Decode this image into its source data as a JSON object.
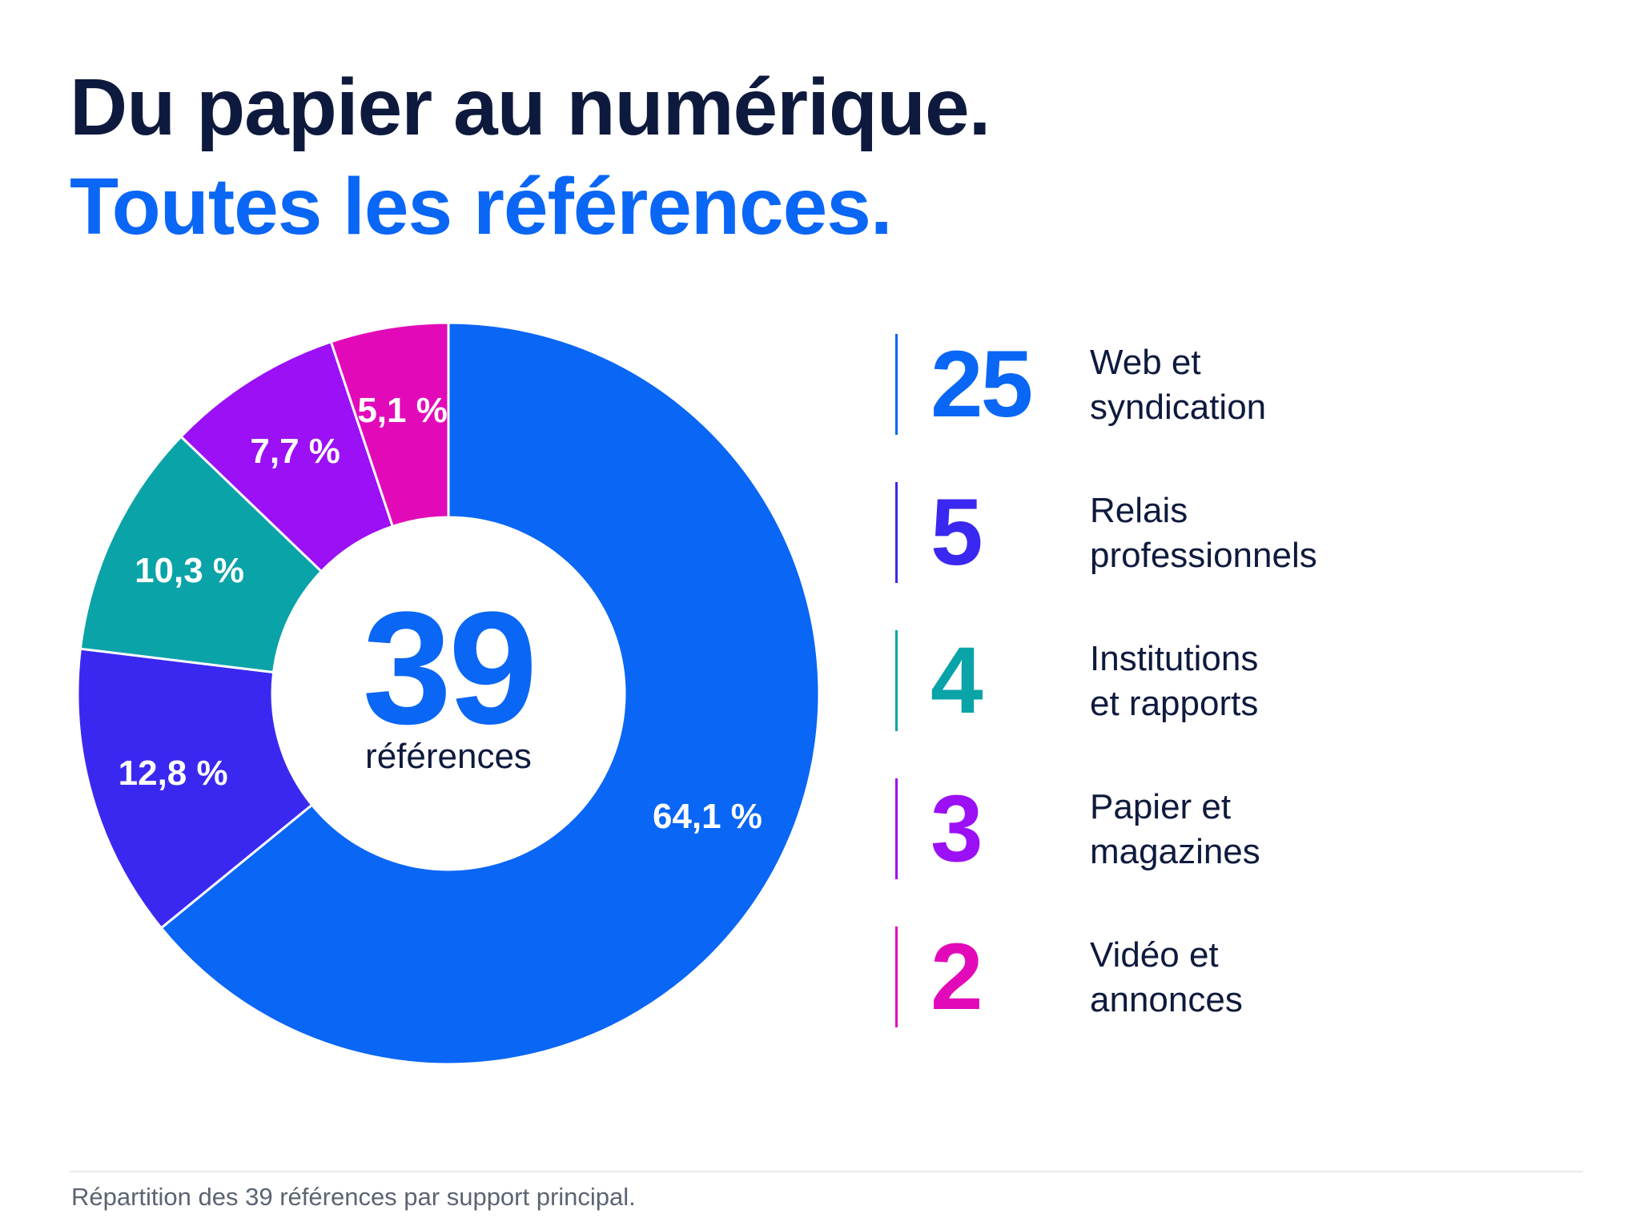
{
  "title": {
    "line1": "Du papier au numérique.",
    "line2": "Toutes les références."
  },
  "center": {
    "number": "39",
    "caption": "références"
  },
  "legend": [
    {
      "count": "25",
      "line1": "Web et",
      "line2": "syndication",
      "color": "#0a66f5"
    },
    {
      "count": "5",
      "line1": "Relais",
      "line2": "professionnels",
      "color": "#3b28f0"
    },
    {
      "count": "4",
      "line1": "Institutions",
      "line2": "et rapports",
      "color": "#0aa3a8"
    },
    {
      "count": "3",
      "line1": "Papier et",
      "line2": "magazines",
      "color": "#9b10f5"
    },
    {
      "count": "2",
      "line1": "Vidéo et",
      "line2": "annonces",
      "color": "#e20ab8"
    }
  ],
  "footnote": "Répartition des 39 références par support principal.",
  "chart_data": {
    "type": "pie",
    "donut": true,
    "total": 39,
    "categories": [
      "Web et syndication",
      "Relais professionnels",
      "Institutions et rapports",
      "Papier et magazines",
      "Vidéo et annonces"
    ],
    "values": [
      25,
      5,
      4,
      3,
      2
    ],
    "percent_labels": [
      "64,1 %",
      "12,8 %",
      "10,3 %",
      "7,7 %",
      "5,1 %"
    ],
    "colors": [
      "#0a66f5",
      "#3b28f0",
      "#0aa3a8",
      "#9b10f5",
      "#e20ab8"
    ],
    "start": "top",
    "direction": "clockwise"
  }
}
